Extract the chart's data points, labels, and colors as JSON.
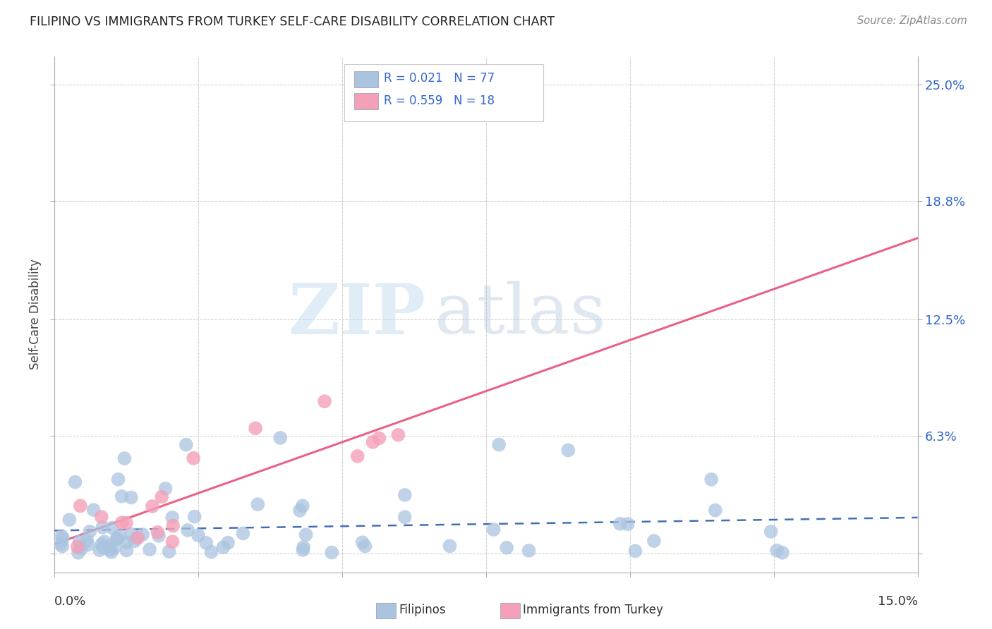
{
  "title": "FILIPINO VS IMMIGRANTS FROM TURKEY SELF-CARE DISABILITY CORRELATION CHART",
  "source": "Source: ZipAtlas.com",
  "ylabel": "Self-Care Disability",
  "xmin": 0.0,
  "xmax": 0.15,
  "ymin": -0.01,
  "ymax": 0.265,
  "filipino_color": "#aac4e0",
  "turkey_color": "#f4a0b8",
  "filipino_line_color": "#2255aa",
  "turkey_line_color": "#e8507a",
  "watermark_zip_color": "#ccddf0",
  "watermark_atlas_color": "#c8d8e8",
  "background_color": "#ffffff",
  "ytick_vals": [
    0.0,
    0.063,
    0.125,
    0.188,
    0.25
  ],
  "ytick_labels": [
    "",
    "6.3%",
    "12.5%",
    "18.8%",
    "25.0%"
  ],
  "xtick_vals": [
    0.0,
    0.025,
    0.05,
    0.075,
    0.1,
    0.125,
    0.15
  ],
  "legend_r1": "R = 0.021",
  "legend_n1": "N = 77",
  "legend_r2": "R = 0.559",
  "legend_n2": "N = 18"
}
